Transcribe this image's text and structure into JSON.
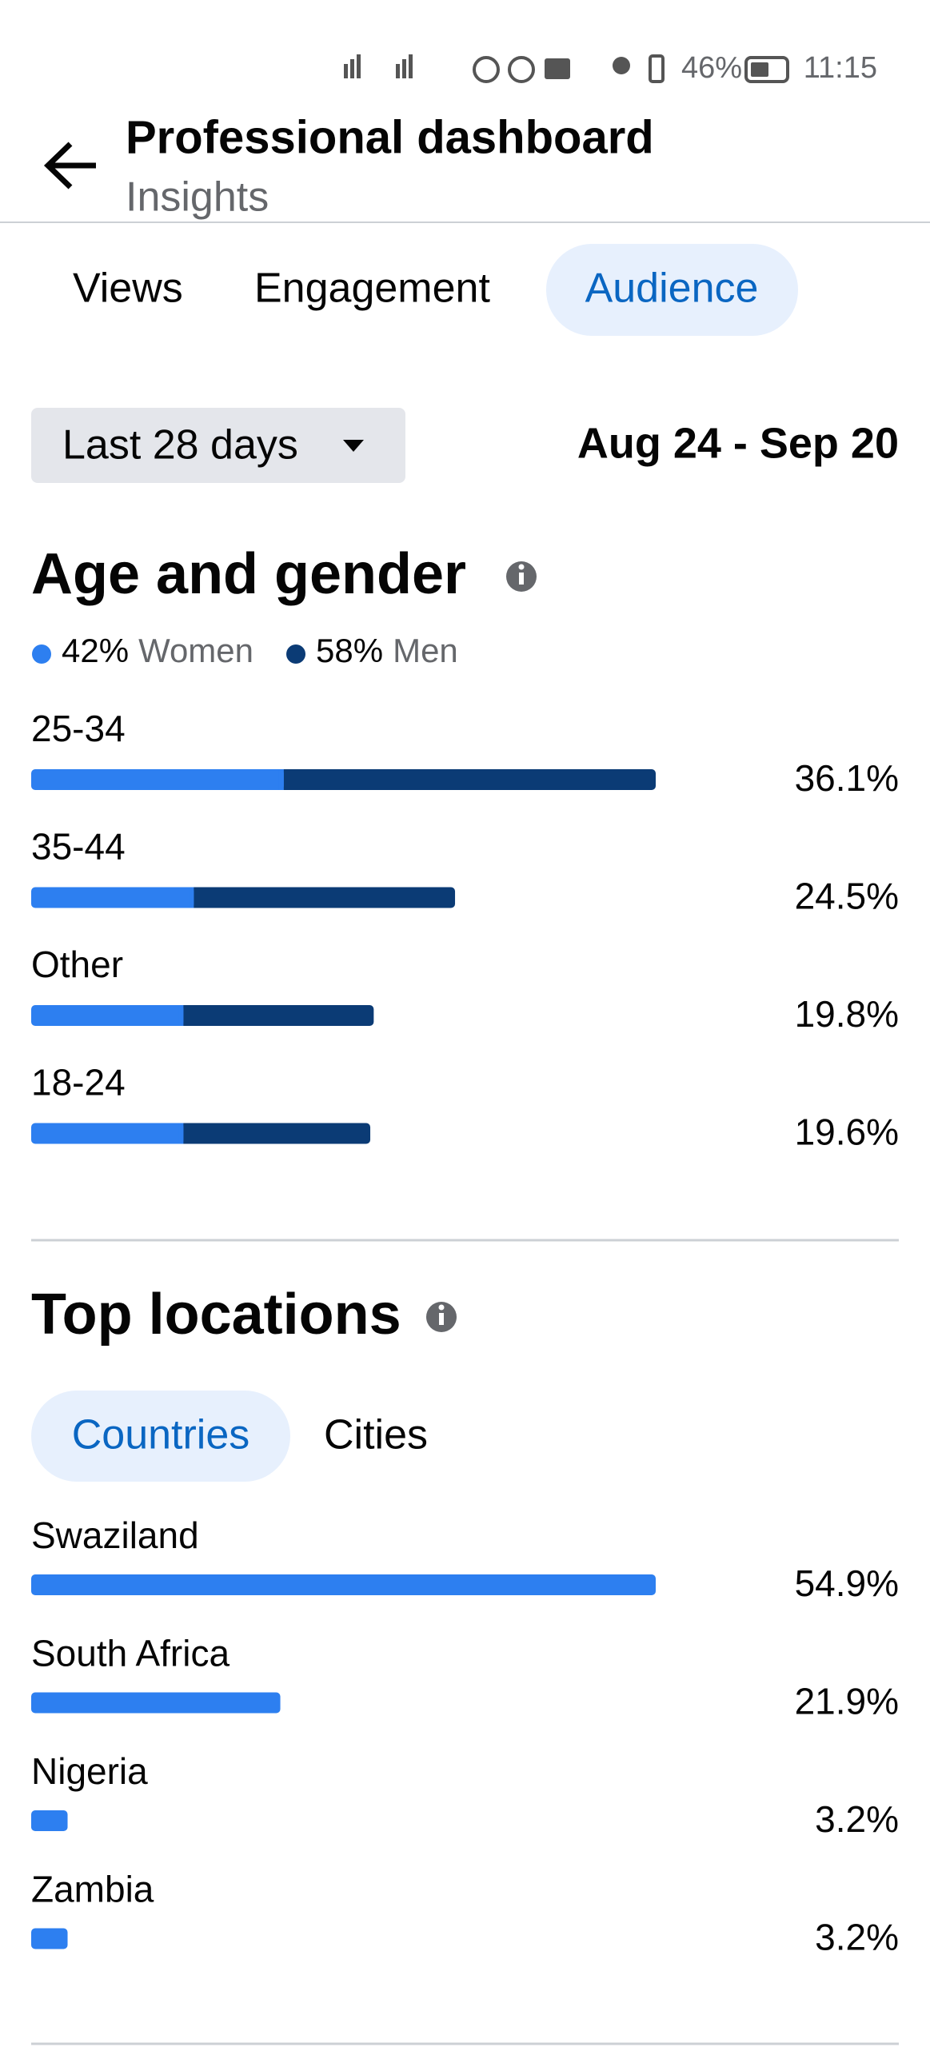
{
  "status_bar": {
    "battery": "46%",
    "time": "11:15"
  },
  "header": {
    "title": "Professional dashboard",
    "subtitle": "Insights"
  },
  "tabs": [
    "Views",
    "Engagement",
    "Audience"
  ],
  "date_filter": {
    "label": "Last 28 days",
    "range": "Aug 24 - Sep 20"
  },
  "age_gender": {
    "title": "Age and gender",
    "legend": [
      {
        "share": "42%",
        "name": "Women",
        "color": "#2d7ff0"
      },
      {
        "share": "58%",
        "name": "Men",
        "color": "#0b3b75"
      }
    ],
    "rows": [
      {
        "label": "25-34",
        "value_label": "36.1%",
        "women": 14.6,
        "men": 21.5
      },
      {
        "label": "35-44",
        "value_label": "24.5%",
        "women": 9.4,
        "men": 15.1
      },
      {
        "label": "Other",
        "value_label": "19.8%",
        "women": 8.8,
        "men": 11.0
      },
      {
        "label": "18-24",
        "value_label": "19.6%",
        "women": 8.8,
        "men": 10.8
      }
    ]
  },
  "top_locations": {
    "title": "Top locations",
    "tabs": [
      "Countries",
      "Cities"
    ],
    "color": "#2d7ff0",
    "rows": [
      {
        "label": "Swaziland",
        "value": 54.9,
        "value_label": "54.9%"
      },
      {
        "label": "South Africa",
        "value": 21.9,
        "value_label": "21.9%"
      },
      {
        "label": "Nigeria",
        "value": 3.2,
        "value_label": "3.2%"
      },
      {
        "label": "Zambia",
        "value": 3.2,
        "value_label": "3.2%"
      }
    ]
  }
}
